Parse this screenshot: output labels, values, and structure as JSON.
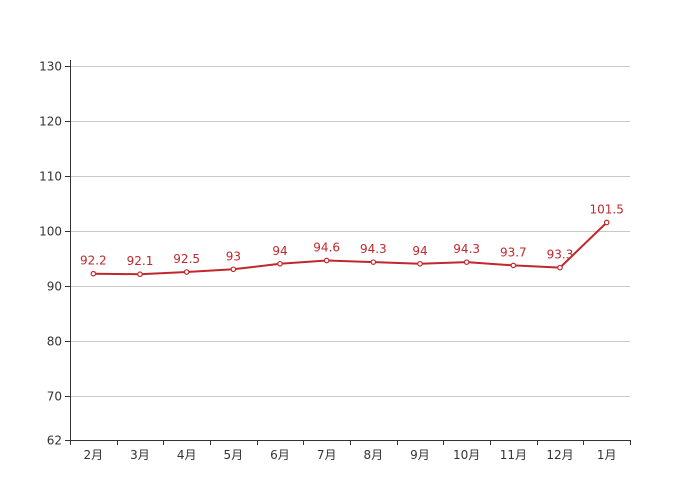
{
  "chart_data": {
    "type": "line",
    "categories": [
      "2月",
      "3月",
      "4月",
      "5月",
      "6月",
      "7月",
      "8月",
      "9月",
      "10月",
      "11月",
      "12月",
      "1月"
    ],
    "series": [
      {
        "values": [
          92.2,
          92.1,
          92.5,
          93,
          94,
          94.6,
          94.3,
          94,
          94.3,
          93.7,
          93.3,
          101.5
        ],
        "labels": [
          "92.2",
          "92.1",
          "92.5",
          "93",
          "94",
          "94.6",
          "94.3",
          "94",
          "94.3",
          "93.7",
          "93.3",
          "101.5"
        ]
      }
    ],
    "title": "",
    "xlabel": "",
    "ylabel": "",
    "ylim": [
      62,
      131
    ],
    "yticks": [
      62,
      70,
      80,
      90,
      100,
      110,
      120,
      130
    ],
    "ytick_labels": [
      "62",
      "70",
      "80",
      "90",
      "100",
      "110",
      "120",
      "130"
    ],
    "grid": true,
    "legend": "none",
    "colors": {
      "line": "#c0282d",
      "label": "#c0282d",
      "grid": "#c8c8c8",
      "axis": "#333333",
      "tick_text": "#333333"
    }
  }
}
